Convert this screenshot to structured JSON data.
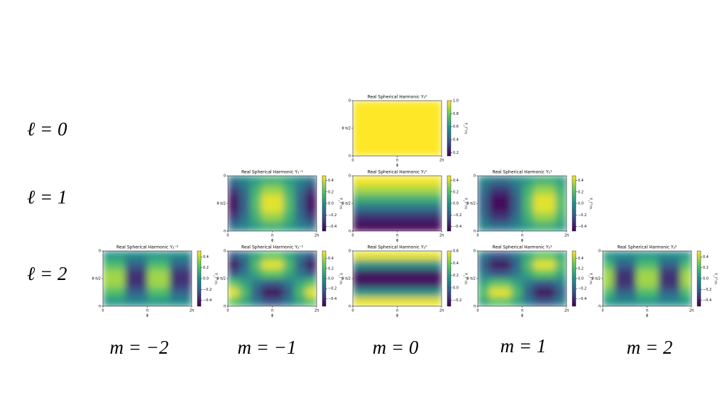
{
  "row_labels": [
    "ℓ = 0",
    "ℓ = 1",
    "ℓ = 2"
  ],
  "column_labels": [
    "m = −2",
    "m = −1",
    "m = 0",
    "m = 1",
    "m = 2"
  ],
  "colormap": "viridis",
  "chart_data": [
    {
      "type": "heatmap",
      "title": "Real Spherical Harmonic Y₀⁰",
      "xlabel": "ϕ",
      "ylabel": "θ",
      "colorbar_label": "Y_l^m",
      "xlim": [
        0,
        6.2832
      ],
      "xticks": [
        0,
        {
          "value": 3.1416,
          "label": "π"
        },
        {
          "value": 6.2832,
          "label": "2π"
        }
      ],
      "ylim": [
        3.1416,
        0
      ],
      "yticks": [
        0,
        {
          "value": 1.5708,
          "label": "π/2"
        },
        {
          "value": 3.1416,
          "label": "π"
        }
      ],
      "clim": [
        0.15,
        1.0
      ],
      "cticks": [
        0.2,
        0.4,
        0.6,
        0.8,
        {
          "value": 1.0,
          "label": "1.0"
        }
      ],
      "values": [
        [
          1,
          1,
          1,
          1,
          1,
          1,
          1,
          1
        ],
        [
          1,
          1,
          1,
          1,
          1,
          1,
          1,
          1
        ],
        [
          1,
          1,
          1,
          1,
          1,
          1,
          1,
          1
        ],
        [
          1,
          1,
          1,
          1,
          1,
          1,
          1,
          1
        ],
        [
          1,
          1,
          1,
          1,
          1,
          1,
          1,
          1
        ],
        [
          1,
          1,
          1,
          1,
          1,
          1,
          1,
          1
        ]
      ]
    },
    {
      "type": "heatmap",
      "title": "Real Spherical Harmonic Y₁⁻¹",
      "xlabel": "ϕ",
      "ylabel": "θ",
      "colorbar_label": "Y_l^m",
      "xlim": [
        0,
        6.2832
      ],
      "xticks": [
        0,
        {
          "value": 3.1416,
          "label": "π"
        },
        {
          "value": 6.2832,
          "label": "2π"
        }
      ],
      "ylim": [
        3.1416,
        0
      ],
      "yticks": [
        0,
        {
          "value": 1.5708,
          "label": "π/2"
        },
        {
          "value": 3.1416,
          "label": "π"
        }
      ],
      "clim": [
        -0.48,
        0.48
      ],
      "cticks": [
        {
          "value": -0.4,
          "label": "−0.4"
        },
        {
          "value": -0.2,
          "label": "−0.2"
        },
        {
          "value": 0,
          "label": "0.0"
        },
        0.2,
        0.4
      ],
      "values": [
        [
          -0.12,
          -0.05,
          0.05,
          0.12,
          0.12,
          0.05,
          -0.05,
          -0.12
        ],
        [
          -0.32,
          -0.13,
          0.13,
          0.32,
          0.32,
          0.13,
          -0.13,
          -0.32
        ],
        [
          -0.44,
          -0.18,
          0.18,
          0.44,
          0.44,
          0.18,
          -0.18,
          -0.44
        ],
        [
          -0.44,
          -0.18,
          0.18,
          0.44,
          0.44,
          0.18,
          -0.18,
          -0.44
        ],
        [
          -0.32,
          -0.13,
          0.13,
          0.32,
          0.32,
          0.13,
          -0.13,
          -0.32
        ],
        [
          -0.12,
          -0.05,
          0.05,
          0.12,
          0.12,
          0.05,
          -0.05,
          -0.12
        ]
      ]
    },
    {
      "type": "heatmap",
      "title": "Real Spherical Harmonic Y₁⁰",
      "xlabel": "ϕ",
      "ylabel": "θ",
      "colorbar_label": "Y_l^m",
      "xlim": [
        0,
        6.2832
      ],
      "xticks": [
        0,
        {
          "value": 3.1416,
          "label": "π"
        },
        {
          "value": 6.2832,
          "label": "2π"
        }
      ],
      "ylim": [
        3.1416,
        0
      ],
      "yticks": [
        0,
        {
          "value": 1.5708,
          "label": "π/2"
        },
        {
          "value": 3.1416,
          "label": "π"
        }
      ],
      "clim": [
        -0.48,
        0.48
      ],
      "cticks": [
        {
          "value": -0.4,
          "label": "−0.4"
        },
        {
          "value": -0.2,
          "label": "−0.2"
        },
        {
          "value": 0,
          "label": "0.0"
        },
        0.2,
        0.4
      ],
      "values": [
        [
          0.47,
          0.47,
          0.47,
          0.47,
          0.47,
          0.47,
          0.47,
          0.47
        ],
        [
          0.35,
          0.35,
          0.35,
          0.35,
          0.35,
          0.35,
          0.35,
          0.35
        ],
        [
          0.13,
          0.13,
          0.13,
          0.13,
          0.13,
          0.13,
          0.13,
          0.13
        ],
        [
          -0.13,
          -0.13,
          -0.13,
          -0.13,
          -0.13,
          -0.13,
          -0.13,
          -0.13
        ],
        [
          -0.35,
          -0.35,
          -0.35,
          -0.35,
          -0.35,
          -0.35,
          -0.35,
          -0.35
        ],
        [
          -0.47,
          -0.47,
          -0.47,
          -0.47,
          -0.47,
          -0.47,
          -0.47,
          -0.47
        ]
      ]
    },
    {
      "type": "heatmap",
      "title": "Real Spherical Harmonic Y₁¹",
      "xlabel": "ϕ",
      "ylabel": "θ",
      "colorbar_label": "Y_l^m",
      "xlim": [
        0,
        6.2832
      ],
      "xticks": [
        0,
        {
          "value": 3.1416,
          "label": "π"
        },
        {
          "value": 6.2832,
          "label": "2π"
        }
      ],
      "ylim": [
        3.1416,
        0
      ],
      "yticks": [
        0,
        {
          "value": 1.5708,
          "label": "π/2"
        },
        {
          "value": 3.1416,
          "label": "π"
        }
      ],
      "clim": [
        -0.48,
        0.48
      ],
      "cticks": [
        {
          "value": -0.4,
          "label": "−0.4"
        },
        {
          "value": -0.2,
          "label": "−0.2"
        },
        {
          "value": 0,
          "label": "0.0"
        },
        0.2,
        0.4
      ],
      "values": [
        [
          -0.05,
          -0.12,
          -0.12,
          -0.05,
          0.05,
          0.12,
          0.12,
          0.05
        ],
        [
          -0.13,
          -0.32,
          -0.32,
          -0.13,
          0.13,
          0.32,
          0.32,
          0.13
        ],
        [
          -0.18,
          -0.44,
          -0.44,
          -0.18,
          0.18,
          0.44,
          0.44,
          0.18
        ],
        [
          -0.18,
          -0.44,
          -0.44,
          -0.18,
          0.18,
          0.44,
          0.44,
          0.18
        ],
        [
          -0.13,
          -0.32,
          -0.32,
          -0.13,
          0.13,
          0.32,
          0.32,
          0.13
        ],
        [
          -0.05,
          -0.12,
          -0.12,
          -0.05,
          0.05,
          0.12,
          0.12,
          0.05
        ]
      ]
    },
    {
      "type": "heatmap",
      "title": "Real Spherical Harmonic Y₂⁻²",
      "xlabel": "ϕ",
      "ylabel": "θ",
      "colorbar_label": "Y_l^m",
      "xlim": [
        0,
        6.2832
      ],
      "xticks": [
        0,
        {
          "value": 3.1416,
          "label": "π"
        },
        {
          "value": 6.2832,
          "label": "2π"
        }
      ],
      "ylim": [
        3.1416,
        0
      ],
      "yticks": [
        0,
        {
          "value": 1.5708,
          "label": "π/2"
        },
        {
          "value": 3.1416,
          "label": "π"
        }
      ],
      "clim": [
        -0.51,
        0.51
      ],
      "cticks": [
        {
          "value": -0.4,
          "label": "−0.4"
        },
        {
          "value": -0.2,
          "label": "−0.2"
        },
        {
          "value": 0,
          "label": "0.0"
        },
        0.2,
        0.4
      ],
      "values": [
        [
          0.03,
          0.03,
          -0.03,
          -0.03,
          0.03,
          0.03,
          -0.03,
          -0.03
        ],
        [
          0.19,
          0.19,
          -0.19,
          -0.19,
          0.19,
          0.19,
          -0.19,
          -0.19
        ],
        [
          0.36,
          0.36,
          -0.36,
          -0.36,
          0.36,
          0.36,
          -0.36,
          -0.36
        ],
        [
          0.36,
          0.36,
          -0.36,
          -0.36,
          0.36,
          0.36,
          -0.36,
          -0.36
        ],
        [
          0.19,
          0.19,
          -0.19,
          -0.19,
          0.19,
          0.19,
          -0.19,
          -0.19
        ],
        [
          0.03,
          0.03,
          -0.03,
          -0.03,
          0.03,
          0.03,
          -0.03,
          -0.03
        ]
      ]
    },
    {
      "type": "heatmap",
      "title": "Real Spherical Harmonic Y₂⁻¹",
      "xlabel": "ϕ",
      "ylabel": "θ",
      "colorbar_label": "Y_l^m",
      "xlim": [
        0,
        6.2832
      ],
      "xticks": [
        0,
        {
          "value": 3.1416,
          "label": "π"
        },
        {
          "value": 6.2832,
          "label": "2π"
        }
      ],
      "ylim": [
        3.1416,
        0
      ],
      "yticks": [
        0,
        {
          "value": 1.5708,
          "label": "π/2"
        },
        {
          "value": 3.1416,
          "label": "π"
        }
      ],
      "clim": [
        -0.55,
        0.55
      ],
      "cticks": [
        {
          "value": -0.4,
          "label": "−0.4"
        },
        {
          "value": -0.2,
          "label": "−0.2"
        },
        {
          "value": 0,
          "label": "0.0"
        },
        0.2,
        0.4
      ],
      "values": [
        [
          -0.25,
          -0.1,
          0.1,
          0.25,
          0.25,
          0.1,
          -0.1,
          -0.25
        ],
        [
          -0.51,
          -0.21,
          0.21,
          0.51,
          0.51,
          0.21,
          -0.21,
          -0.51
        ],
        [
          -0.25,
          -0.1,
          0.1,
          0.25,
          0.25,
          0.1,
          -0.1,
          -0.25
        ],
        [
          0.25,
          0.1,
          -0.1,
          -0.25,
          -0.25,
          -0.1,
          0.1,
          0.25
        ],
        [
          0.51,
          0.21,
          -0.21,
          -0.51,
          -0.51,
          -0.21,
          0.21,
          0.51
        ],
        [
          0.25,
          0.1,
          -0.1,
          -0.25,
          -0.25,
          -0.1,
          0.1,
          0.25
        ]
      ]
    },
    {
      "type": "heatmap",
      "title": "Real Spherical Harmonic Y₂⁰",
      "xlabel": "ϕ",
      "ylabel": "θ",
      "colorbar_label": "Y_l^m",
      "xlim": [
        0,
        6.2832
      ],
      "xticks": [
        0,
        {
          "value": 3.1416,
          "label": "π"
        },
        {
          "value": 6.2832,
          "label": "2π"
        }
      ],
      "ylim": [
        3.1416,
        0
      ],
      "yticks": [
        0,
        {
          "value": 1.5708,
          "label": "π/2"
        },
        {
          "value": 3.1416,
          "label": "π"
        }
      ],
      "clim": [
        -0.3,
        0.6
      ],
      "cticks": [
        {
          "value": -0.2,
          "label": "−0.2"
        },
        {
          "value": 0,
          "label": "0.0"
        },
        0.2,
        0.4,
        0.6
      ],
      "values": [
        [
          0.57,
          0.57,
          0.57,
          0.57,
          0.57,
          0.57,
          0.57,
          0.57
        ],
        [
          0.16,
          0.16,
          0.16,
          0.16,
          0.16,
          0.16,
          0.16,
          0.16
        ],
        [
          -0.25,
          -0.25,
          -0.25,
          -0.25,
          -0.25,
          -0.25,
          -0.25,
          -0.25
        ],
        [
          -0.25,
          -0.25,
          -0.25,
          -0.25,
          -0.25,
          -0.25,
          -0.25,
          -0.25
        ],
        [
          0.16,
          0.16,
          0.16,
          0.16,
          0.16,
          0.16,
          0.16,
          0.16
        ],
        [
          0.57,
          0.57,
          0.57,
          0.57,
          0.57,
          0.57,
          0.57,
          0.57
        ]
      ]
    },
    {
      "type": "heatmap",
      "title": "Real Spherical Harmonic Y₂¹",
      "xlabel": "ϕ",
      "ylabel": "θ",
      "colorbar_label": "Y_l^m",
      "xlim": [
        0,
        6.2832
      ],
      "xticks": [
        0,
        {
          "value": 3.1416,
          "label": "π"
        },
        {
          "value": 6.2832,
          "label": "2π"
        }
      ],
      "ylim": [
        3.1416,
        0
      ],
      "yticks": [
        0,
        {
          "value": 1.5708,
          "label": "π/2"
        },
        {
          "value": 3.1416,
          "label": "π"
        }
      ],
      "clim": [
        -0.55,
        0.55
      ],
      "cticks": [
        {
          "value": -0.4,
          "label": "−0.4"
        },
        {
          "value": -0.2,
          "label": "−0.2"
        },
        {
          "value": 0,
          "label": "0.0"
        },
        0.2,
        0.4
      ],
      "values": [
        [
          -0.1,
          -0.25,
          -0.25,
          -0.1,
          0.1,
          0.25,
          0.25,
          0.1
        ],
        [
          -0.21,
          -0.51,
          -0.51,
          -0.21,
          0.21,
          0.51,
          0.51,
          0.21
        ],
        [
          -0.1,
          -0.25,
          -0.25,
          -0.1,
          0.1,
          0.25,
          0.25,
          0.1
        ],
        [
          0.1,
          0.25,
          0.25,
          0.1,
          -0.1,
          -0.25,
          -0.25,
          -0.1
        ],
        [
          0.21,
          0.51,
          0.51,
          0.21,
          -0.21,
          -0.51,
          -0.51,
          -0.21
        ],
        [
          0.1,
          0.25,
          0.25,
          0.1,
          -0.1,
          -0.25,
          -0.25,
          -0.1
        ]
      ]
    },
    {
      "type": "heatmap",
      "title": "Real Spherical Harmonic Y₂²",
      "xlabel": "ϕ",
      "ylabel": "θ",
      "colorbar_label": "Y_l^m",
      "xlim": [
        0,
        6.2832
      ],
      "xticks": [
        0,
        {
          "value": 3.1416,
          "label": "π"
        },
        {
          "value": 6.2832,
          "label": "2π"
        }
      ],
      "ylim": [
        3.1416,
        0
      ],
      "yticks": [
        0,
        {
          "value": 1.5708,
          "label": "π/2"
        },
        {
          "value": 3.1416,
          "label": "π"
        }
      ],
      "clim": [
        -0.51,
        0.51
      ],
      "cticks": [
        {
          "value": -0.4,
          "label": "−0.4"
        },
        {
          "value": -0.2,
          "label": "−0.2"
        },
        {
          "value": 0,
          "label": "0.0"
        },
        0.2,
        0.4
      ],
      "values": [
        [
          0.03,
          -0.03,
          -0.03,
          0.03,
          0.03,
          -0.03,
          -0.03,
          0.03
        ],
        [
          0.19,
          -0.19,
          -0.19,
          0.19,
          0.19,
          -0.19,
          -0.19,
          0.19
        ],
        [
          0.36,
          -0.36,
          -0.36,
          0.36,
          0.36,
          -0.36,
          -0.36,
          0.36
        ],
        [
          0.36,
          -0.36,
          -0.36,
          0.36,
          0.36,
          -0.36,
          -0.36,
          0.36
        ],
        [
          0.19,
          -0.19,
          -0.19,
          0.19,
          0.19,
          -0.19,
          -0.19,
          0.19
        ],
        [
          0.03,
          -0.03,
          -0.03,
          0.03,
          0.03,
          -0.03,
          -0.03,
          0.03
        ]
      ]
    }
  ]
}
